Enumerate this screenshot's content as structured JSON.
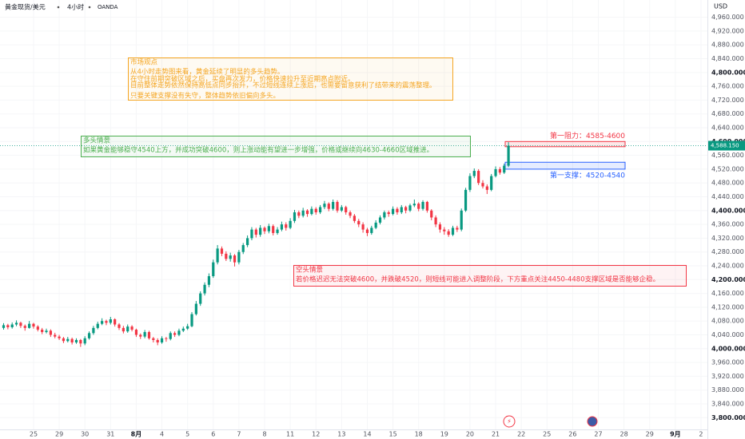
{
  "header": {
    "symbol": "黄金现货/美元",
    "interval": "4小时",
    "source": "OANDA"
  },
  "chart_data": {
    "type": "candlestick",
    "currency": "USD",
    "up_color": "#089981",
    "down_color": "#f23645",
    "grid": true,
    "ohlc": [
      [
        4060,
        4074,
        4055,
        4068
      ],
      [
        4068,
        4072,
        4056,
        4062
      ],
      [
        4062,
        4076,
        4058,
        4070
      ],
      [
        4070,
        4082,
        4065,
        4075
      ],
      [
        4075,
        4078,
        4060,
        4066
      ],
      [
        4066,
        4070,
        4052,
        4060
      ],
      [
        4060,
        4080,
        4058,
        4072
      ],
      [
        4072,
        4075,
        4058,
        4064
      ],
      [
        4064,
        4068,
        4050,
        4055
      ],
      [
        4055,
        4060,
        4042,
        4048
      ],
      [
        4048,
        4058,
        4044,
        4052
      ],
      [
        4052,
        4056,
        4034,
        4040
      ],
      [
        4040,
        4046,
        4030,
        4035
      ],
      [
        4035,
        4040,
        4025,
        4030
      ],
      [
        4030,
        4034,
        4016,
        4022
      ],
      [
        4022,
        4034,
        4018,
        4028
      ],
      [
        4028,
        4032,
        4012,
        4018
      ],
      [
        4018,
        4030,
        4014,
        4025
      ],
      [
        4025,
        4028,
        4005,
        4015
      ],
      [
        4015,
        4036,
        4010,
        4030
      ],
      [
        4030,
        4050,
        4026,
        4045
      ],
      [
        4045,
        4066,
        4040,
        4060
      ],
      [
        4060,
        4078,
        4056,
        4072
      ],
      [
        4072,
        4088,
        4068,
        4080
      ],
      [
        4080,
        4084,
        4068,
        4075
      ],
      [
        4075,
        4092,
        4070,
        4085
      ],
      [
        4085,
        4088,
        4064,
        4070
      ],
      [
        4070,
        4074,
        4054,
        4060
      ],
      [
        4060,
        4066,
        4044,
        4050
      ],
      [
        4050,
        4070,
        4046,
        4064
      ],
      [
        4064,
        4068,
        4050,
        4055
      ],
      [
        4055,
        4058,
        4034,
        4040
      ],
      [
        4040,
        4044,
        4028,
        4035
      ],
      [
        4035,
        4054,
        4030,
        4048
      ],
      [
        4048,
        4052,
        4026,
        4030
      ],
      [
        4030,
        4034,
        4018,
        4025
      ],
      [
        4025,
        4030,
        4010,
        4018
      ],
      [
        4018,
        4036,
        4014,
        4030
      ],
      [
        4030,
        4034,
        4020,
        4028
      ],
      [
        4028,
        4050,
        4024,
        4045
      ],
      [
        4045,
        4050,
        4034,
        4040
      ],
      [
        4040,
        4058,
        4036,
        4052
      ],
      [
        4052,
        4064,
        4048,
        4058
      ],
      [
        4058,
        4072,
        4054,
        4065
      ],
      [
        4065,
        4106,
        4062,
        4100
      ],
      [
        4100,
        4138,
        4096,
        4130
      ],
      [
        4130,
        4166,
        4124,
        4160
      ],
      [
        4160,
        4192,
        4154,
        4185
      ],
      [
        4185,
        4218,
        4178,
        4210
      ],
      [
        4210,
        4258,
        4205,
        4250
      ],
      [
        4250,
        4300,
        4244,
        4290
      ],
      [
        4290,
        4296,
        4268,
        4275
      ],
      [
        4275,
        4282,
        4254,
        4260
      ],
      [
        4260,
        4278,
        4252,
        4270
      ],
      [
        4270,
        4274,
        4238,
        4250
      ],
      [
        4250,
        4286,
        4244,
        4280
      ],
      [
        4280,
        4306,
        4274,
        4300
      ],
      [
        4300,
        4328,
        4294,
        4320
      ],
      [
        4320,
        4352,
        4314,
        4345
      ],
      [
        4345,
        4350,
        4322,
        4330
      ],
      [
        4330,
        4358,
        4324,
        4350
      ],
      [
        4350,
        4354,
        4332,
        4340
      ],
      [
        4340,
        4362,
        4334,
        4355
      ],
      [
        4355,
        4360,
        4328,
        4335
      ],
      [
        4335,
        4352,
        4330,
        4345
      ],
      [
        4345,
        4368,
        4340,
        4360
      ],
      [
        4360,
        4366,
        4342,
        4350
      ],
      [
        4350,
        4378,
        4346,
        4370
      ],
      [
        4370,
        4402,
        4364,
        4395
      ],
      [
        4395,
        4400,
        4378,
        4385
      ],
      [
        4385,
        4408,
        4380,
        4400
      ],
      [
        4400,
        4404,
        4382,
        4390
      ],
      [
        4390,
        4412,
        4386,
        4405
      ],
      [
        4405,
        4410,
        4388,
        4395
      ],
      [
        4395,
        4416,
        4390,
        4410
      ],
      [
        4410,
        4428,
        4404,
        4420
      ],
      [
        4420,
        4424,
        4398,
        4405
      ],
      [
        4405,
        4432,
        4400,
        4425
      ],
      [
        4425,
        4430,
        4394,
        4400
      ],
      [
        4400,
        4416,
        4396,
        4410
      ],
      [
        4410,
        4414,
        4388,
        4395
      ],
      [
        4395,
        4400,
        4378,
        4385
      ],
      [
        4385,
        4390,
        4364,
        4370
      ],
      [
        4370,
        4376,
        4352,
        4360
      ],
      [
        4360,
        4366,
        4336,
        4345
      ],
      [
        4345,
        4350,
        4326,
        4335
      ],
      [
        4335,
        4356,
        4330,
        4350
      ],
      [
        4350,
        4372,
        4346,
        4365
      ],
      [
        4365,
        4386,
        4360,
        4380
      ],
      [
        4380,
        4400,
        4374,
        4395
      ],
      [
        4395,
        4400,
        4382,
        4390
      ],
      [
        4390,
        4412,
        4386,
        4405
      ],
      [
        4405,
        4410,
        4388,
        4395
      ],
      [
        4395,
        4416,
        4390,
        4410
      ],
      [
        4410,
        4414,
        4392,
        4400
      ],
      [
        4400,
        4420,
        4396,
        4415
      ],
      [
        4415,
        4432,
        4410,
        4420
      ],
      [
        4420,
        4424,
        4398,
        4405
      ],
      [
        4405,
        4430,
        4400,
        4425
      ],
      [
        4425,
        4428,
        4394,
        4400
      ],
      [
        4400,
        4404,
        4372,
        4380
      ],
      [
        4380,
        4386,
        4352,
        4360
      ],
      [
        4360,
        4366,
        4336,
        4345
      ],
      [
        4345,
        4352,
        4330,
        4340
      ],
      [
        4340,
        4346,
        4324,
        4330
      ],
      [
        4330,
        4356,
        4326,
        4350
      ],
      [
        4350,
        4356,
        4338,
        4345
      ],
      [
        4345,
        4406,
        4340,
        4400
      ],
      [
        4400,
        4466,
        4396,
        4460
      ],
      [
        4460,
        4508,
        4454,
        4500
      ],
      [
        4500,
        4522,
        4494,
        4515
      ],
      [
        4515,
        4520,
        4474,
        4480
      ],
      [
        4480,
        4488,
        4464,
        4470
      ],
      [
        4470,
        4476,
        4448,
        4460
      ],
      [
        4460,
        4506,
        4456,
        4500
      ],
      [
        4500,
        4528,
        4496,
        4520
      ],
      [
        4520,
        4526,
        4504,
        4510
      ],
      [
        4510,
        4536,
        4506,
        4530
      ],
      [
        4530,
        4598,
        4526,
        4588
      ]
    ],
    "xlim": [
      -0.84,
      164.5
    ],
    "xticks": [
      {
        "value": 7,
        "label": "25"
      },
      {
        "value": 13,
        "label": "29"
      },
      {
        "value": 19,
        "label": "30"
      },
      {
        "value": 25,
        "label": "31"
      },
      {
        "value": 31,
        "label": "8月"
      },
      {
        "value": 37,
        "label": "4"
      },
      {
        "value": 43,
        "label": "5"
      },
      {
        "value": 49,
        "label": "6"
      },
      {
        "value": 55,
        "label": "7"
      },
      {
        "value": 61,
        "label": "8"
      },
      {
        "value": 67,
        "label": "11"
      },
      {
        "value": 73,
        "label": "12"
      },
      {
        "value": 79,
        "label": "13"
      },
      {
        "value": 85,
        "label": "14"
      },
      {
        "value": 91,
        "label": "15"
      },
      {
        "value": 97,
        "label": "18"
      },
      {
        "value": 103,
        "label": "19"
      },
      {
        "value": 109,
        "label": "20"
      },
      {
        "value": 115,
        "label": "21"
      },
      {
        "value": 121,
        "label": "22"
      },
      {
        "value": 127,
        "label": "25"
      },
      {
        "value": 133,
        "label": "26"
      },
      {
        "value": 139,
        "label": "27"
      },
      {
        "value": 145,
        "label": "28"
      },
      {
        "value": 151,
        "label": "29"
      },
      {
        "value": 157,
        "label": "9月"
      },
      {
        "value": 163,
        "label": "2"
      }
    ],
    "ylim": [
      3766,
      5010
    ],
    "yticks": [
      {
        "value": 3800,
        "label": "3,800.000"
      },
      {
        "value": 3840,
        "label": "3,840.000"
      },
      {
        "value": 3880,
        "label": "3,880.000"
      },
      {
        "value": 3920,
        "label": "3,920.000"
      },
      {
        "value": 3960,
        "label": "3,960.000"
      },
      {
        "value": 4000,
        "label": "4,000.000"
      },
      {
        "value": 4040,
        "label": "4,040.000"
      },
      {
        "value": 4080,
        "label": "4,080.000"
      },
      {
        "value": 4120,
        "label": "4,120.000"
      },
      {
        "value": 4160,
        "label": "4,160.000"
      },
      {
        "value": 4200,
        "label": "4,200.000"
      },
      {
        "value": 4240,
        "label": "4,240.000"
      },
      {
        "value": 4280,
        "label": "4,280.000"
      },
      {
        "value": 4320,
        "label": "4,320.000"
      },
      {
        "value": 4360,
        "label": "4,360.000"
      },
      {
        "value": 4400,
        "label": "4,400.000"
      },
      {
        "value": 4440,
        "label": "4,440.000"
      },
      {
        "value": 4480,
        "label": "4,480.000"
      },
      {
        "value": 4520,
        "label": "4,520.000"
      },
      {
        "value": 4560,
        "label": "4,560.000"
      },
      {
        "value": 4600,
        "label": "4,600.000"
      },
      {
        "value": 4640,
        "label": "4,640.000"
      },
      {
        "value": 4680,
        "label": "4,680.000"
      },
      {
        "value": 4720,
        "label": "4,720.000"
      },
      {
        "value": 4760,
        "label": "4,760.000"
      },
      {
        "value": 4800,
        "label": "4,800.000"
      },
      {
        "value": 4840,
        "label": "4,840.000"
      },
      {
        "value": 4880,
        "label": "4,880.000"
      },
      {
        "value": 4920,
        "label": "4,920.000"
      },
      {
        "value": 4960,
        "label": "4,960.000"
      }
    ],
    "last_price": {
      "value": 4588,
      "label": "4,588.150"
    },
    "zones": [
      {
        "label": "第一阻力：4585-4600",
        "low": 4585,
        "high": 4600,
        "color": "#f23645"
      },
      {
        "label": "第一支撑：4520-4540",
        "low": 4520,
        "high": 4540,
        "color": "#2962ff"
      }
    ],
    "annotations": [
      {
        "title": "市场观点",
        "color": "#f5a623",
        "lines": [
          "从4小时走势图来看，黄金延续了明显的多头趋势。",
          "在守住前期突破区域之后，买盘再次发力，价格快速拉升至近期高点附近。",
          "目前整体走势依然保持高低点同步抬升，不过短线连续上涨后，也需要留意获利了结带来的震荡整理。",
          "只要关键支撑没有失守，整体趋势依旧偏向多头。"
        ]
      },
      {
        "title": "多头情景",
        "color": "#4caf50",
        "lines": [
          "如果黄金能够稳守4540上方，并成功突破4600，则上涨动能有望进一步增强，价格或继续向4630-4660区域推进。"
        ]
      },
      {
        "title": "空头情景",
        "color": "#f23645",
        "lines": [
          "若价格迟迟无法突破4600，并跌破4520，则短线可能进入调整阶段，下方重点关注4450-4480支撑区域是否能够企稳。"
        ]
      }
    ]
  }
}
